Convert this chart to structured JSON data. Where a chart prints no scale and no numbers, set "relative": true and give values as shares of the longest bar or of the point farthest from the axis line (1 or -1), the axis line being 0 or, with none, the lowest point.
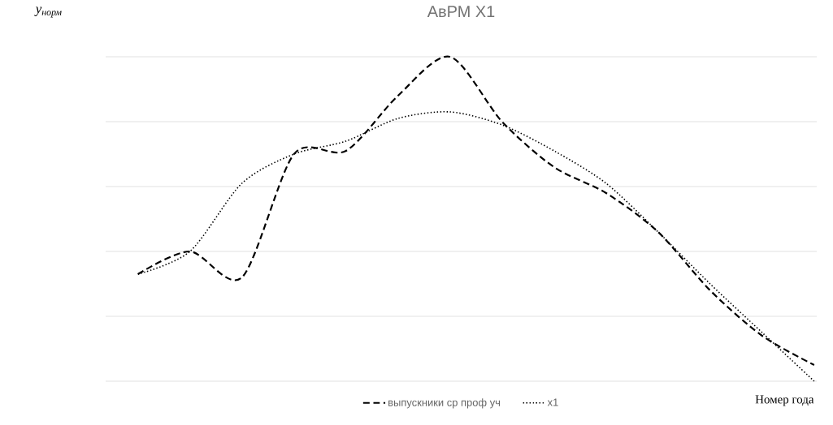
{
  "chart_data": {
    "type": "line",
    "title": "АвРМ Х1",
    "xlabel": "Номер года",
    "ylabel": "y$_{норм}$",
    "relative": true,
    "grid": "y",
    "legend": "bottom",
    "marker": "none",
    "categories": [
      null,
      null,
      null,
      null,
      null,
      null,
      null,
      null,
      null,
      null,
      null,
      null,
      null,
      null
    ],
    "series": [
      {
        "name": "выпускники ср проф уч",
        "color": "#000000",
        "line_style": "dashed",
        "values": [
          0.33,
          0.4,
          0.32,
          0.7,
          0.71,
          0.88,
          1.0,
          0.8,
          0.66,
          0.58,
          0.46,
          0.28,
          0.14,
          0.05
        ]
      },
      {
        "name": "х1",
        "color": "#000000",
        "line_style": "dotted",
        "values": [
          0.33,
          0.4,
          0.61,
          0.7,
          0.74,
          0.81,
          0.83,
          0.79,
          0.71,
          0.61,
          0.46,
          0.3,
          0.15,
          0.0
        ]
      }
    ]
  }
}
